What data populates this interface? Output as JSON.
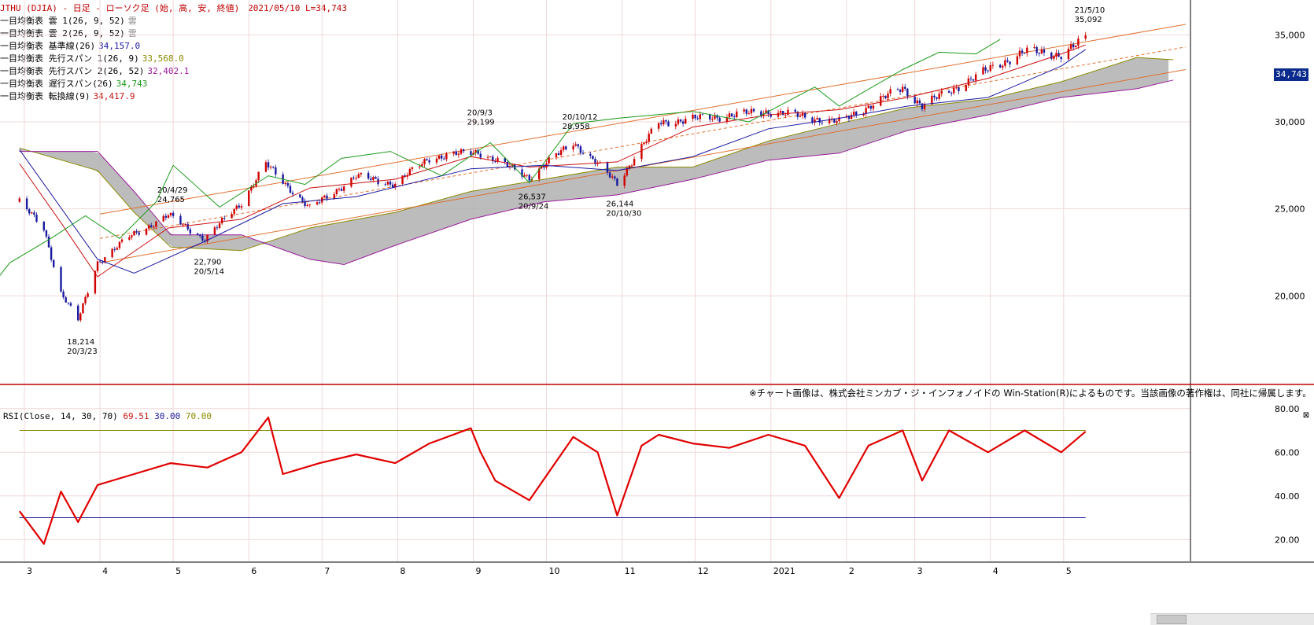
{
  "title": "JTHU (DJIA) - 日足 - ローソク足 (始, 高, 安, 終値)　2021/05/10 L=34,743",
  "legend": [
    {
      "text": "一目均衡表 雲 1(26, 9, 52)",
      "value": "雲",
      "color": "#888888"
    },
    {
      "text": "一目均衡表 雲 2(26, 9, 52)",
      "value": "雲",
      "color": "#888888"
    },
    {
      "text": "一目均衡表 基準線(26)",
      "value": "34,157.0",
      "color": "#1a1aa0"
    },
    {
      "text": "一目均衡表 先行スパン 1(26, 9)",
      "value": "33,568.0",
      "color": "#8a8a00"
    },
    {
      "text": "一目均衡表 先行スパン 2(26, 52)",
      "value": "32,402.1",
      "color": "#9a1a9a"
    },
    {
      "text": "一目均衡表 遅行スパン(26)",
      "value": "34,743",
      "color": "#1a9a1a"
    },
    {
      "text": "一目均衡表 転換線(9)",
      "value": "34,417.9",
      "color": "#cc1111"
    }
  ],
  "current_price_badge": "34,743",
  "rsi_legend": {
    "label": "RSI(Close, 14, 30, 70)",
    "v1": "69.51",
    "v1_color": "#cc1111",
    "v2": "30.00",
    "v2_color": "#1a1aa0",
    "v3": "70.00",
    "v3_color": "#8a8a00"
  },
  "copyright": "※チャート画像は、株式会社ミンカブ・ジ・インフォノイドの Win-Station(R)によるものです。当該画像の著作権は、同社に帰属します。",
  "colors": {
    "up": "#d00000",
    "down": "#1a1aa0",
    "tenkan": "#cc1111",
    "kijun": "#1a1aa0",
    "chikou": "#1a9a1a",
    "spanA": "#8a8a00",
    "spanB": "#9a1a9a",
    "cloud": "#b0b0b0",
    "cloud_dark": "#505050",
    "trend": "#e07030",
    "rsi": "#e00000",
    "grid": "#f0d8d8",
    "frame": "#c00000"
  },
  "chart_data": [
    {
      "type": "line",
      "title": "JTHU (DJIA) - 日足 - ローソク足 (始, 高, 安, 終値)",
      "ylim": [
        15000,
        37000
      ],
      "y_ticks": [
        "35,000",
        "30,000",
        "25,000",
        "20,000"
      ],
      "x_month_labels": [
        "3",
        "4",
        "5",
        "6",
        "7",
        "8",
        "9",
        "10",
        "11",
        "12",
        "2021",
        "2",
        "3",
        "4",
        "5"
      ],
      "annotations": [
        {
          "date": "20/3/23",
          "value": "18,214"
        },
        {
          "date": "20/4/29",
          "value": "24,765"
        },
        {
          "date": "20/5/14",
          "value": "22,790"
        },
        {
          "date": "20/9/3",
          "value": "29,199"
        },
        {
          "date": "20/9/24",
          "value": "26,537"
        },
        {
          "date": "20/10/12",
          "value": "28,958"
        },
        {
          "date": "20/10/30",
          "value": "26,144"
        },
        {
          "date": "21/5/10",
          "value": "35,092"
        }
      ],
      "series": [
        {
          "name": "終値",
          "points": [
            [
              "2020-02-28",
              25400
            ],
            [
              "2020-03-09",
              23850
            ],
            [
              "2020-03-16",
              20190
            ],
            [
              "2020-03-23",
              18590
            ],
            [
              "2020-03-31",
              21920
            ],
            [
              "2020-04-13",
              23390
            ],
            [
              "2020-04-29",
              24630
            ],
            [
              "2020-05-14",
              23250
            ],
            [
              "2020-05-29",
              25380
            ],
            [
              "2020-06-08",
              27570
            ],
            [
              "2020-06-26",
              25020
            ],
            [
              "2020-07-15",
              26870
            ],
            [
              "2020-07-31",
              26430
            ],
            [
              "2020-08-14",
              27930
            ],
            [
              "2020-09-03",
              28290
            ],
            [
              "2020-09-24",
              26820
            ],
            [
              "2020-10-12",
              28840
            ],
            [
              "2020-10-30",
              26500
            ],
            [
              "2020-11-16",
              29950
            ],
            [
              "2020-12-04",
              30220
            ],
            [
              "2020-12-31",
              30600
            ],
            [
              "2021-01-29",
              29980
            ],
            [
              "2021-02-24",
              31960
            ],
            [
              "2021-03-04",
              30920
            ],
            [
              "2021-03-31",
              32980
            ],
            [
              "2021-04-15",
              34040
            ],
            [
              "2021-04-30",
              33870
            ],
            [
              "2021-05-10",
              34743
            ]
          ]
        },
        {
          "name": "転換線",
          "points": [
            [
              "2020-02-28",
              27600
            ],
            [
              "2020-03-16",
              24200
            ],
            [
              "2020-03-31",
              21100
            ],
            [
              "2020-04-29",
              23900
            ],
            [
              "2020-05-29",
              24400
            ],
            [
              "2020-06-26",
              26200
            ],
            [
              "2020-07-31",
              26700
            ],
            [
              "2020-08-31",
              28000
            ],
            [
              "2020-09-24",
              27400
            ],
            [
              "2020-10-30",
              27700
            ],
            [
              "2020-11-30",
              29700
            ],
            [
              "2020-12-31",
              30400
            ],
            [
              "2021-01-29",
              30700
            ],
            [
              "2021-02-26",
              31400
            ],
            [
              "2021-03-31",
              32500
            ],
            [
              "2021-04-30",
              33900
            ],
            [
              "2021-05-10",
              34418
            ]
          ]
        },
        {
          "name": "基準線",
          "points": [
            [
              "2020-02-28",
              28400
            ],
            [
              "2020-03-31",
              22100
            ],
            [
              "2020-04-15",
              21300
            ],
            [
              "2020-05-15",
              23200
            ],
            [
              "2020-06-15",
              25300
            ],
            [
              "2020-07-15",
              25700
            ],
            [
              "2020-08-31",
              27300
            ],
            [
              "2020-09-30",
              27500
            ],
            [
              "2020-10-30",
              27200
            ],
            [
              "2020-11-30",
              28000
            ],
            [
              "2020-12-31",
              29600
            ],
            [
              "2021-01-29",
              30200
            ],
            [
              "2021-02-26",
              30900
            ],
            [
              "2021-03-31",
              31400
            ],
            [
              "2021-04-30",
              33200
            ],
            [
              "2021-05-10",
              34157
            ]
          ]
        },
        {
          "name": "遅行スパン",
          "points": [
            [
              "2020-01-17",
              25400
            ],
            [
              "2020-02-03",
              23900
            ],
            [
              "2020-02-14",
              20100
            ],
            [
              "2020-02-24",
              21900
            ],
            [
              "2020-03-13",
              23400
            ],
            [
              "2020-03-26",
              24600
            ],
            [
              "2020-04-09",
              23300
            ],
            [
              "2020-04-24",
              25400
            ],
            [
              "2020-05-01",
              27500
            ],
            [
              "2020-05-20",
              25100
            ],
            [
              "2020-06-09",
              26900
            ],
            [
              "2020-06-24",
              26400
            ],
            [
              "2020-07-09",
              27900
            ],
            [
              "2020-07-29",
              28300
            ],
            [
              "2020-08-19",
              26900
            ],
            [
              "2020-09-08",
              28800
            ],
            [
              "2020-09-24",
              26500
            ],
            [
              "2020-10-12",
              29900
            ],
            [
              "2020-10-30",
              30200
            ],
            [
              "2020-11-30",
              30600
            ],
            [
              "2020-12-23",
              30000
            ],
            [
              "2021-01-19",
              32000
            ],
            [
              "2021-01-29",
              30900
            ],
            [
              "2021-02-24",
              33000
            ],
            [
              "2021-03-11",
              34000
            ],
            [
              "2021-03-26",
              33900
            ],
            [
              "2021-04-05",
              34743
            ]
          ]
        },
        {
          "name": "先行スパン1",
          "points": [
            [
              "2020-02-28",
              28500
            ],
            [
              "2020-03-31",
              27200
            ],
            [
              "2020-04-15",
              24800
            ],
            [
              "2020-04-30",
              22800
            ],
            [
              "2020-05-29",
              22600
            ],
            [
              "2020-06-26",
              23900
            ],
            [
              "2020-07-31",
              24800
            ],
            [
              "2020-08-31",
              26000
            ],
            [
              "2020-09-30",
              26700
            ],
            [
              "2020-10-30",
              27400
            ],
            [
              "2020-11-30",
              27400
            ],
            [
              "2020-12-31",
              28900
            ],
            [
              "2021-01-29",
              29900
            ],
            [
              "2021-02-26",
              30800
            ],
            [
              "2021-03-31",
              31300
            ],
            [
              "2021-04-30",
              32300
            ],
            [
              "2021-05-31",
              33700
            ],
            [
              "2021-06-15",
              33568
            ]
          ]
        },
        {
          "name": "先行スパン2",
          "points": [
            [
              "2020-02-28",
              28300
            ],
            [
              "2020-03-31",
              28300
            ],
            [
              "2020-04-15",
              26000
            ],
            [
              "2020-04-30",
              23500
            ],
            [
              "2020-05-29",
              23500
            ],
            [
              "2020-06-26",
              22100
            ],
            [
              "2020-07-10",
              21800
            ],
            [
              "2020-07-31",
              22900
            ],
            [
              "2020-08-31",
              24400
            ],
            [
              "2020-09-30",
              25400
            ],
            [
              "2020-10-30",
              25800
            ],
            [
              "2020-11-30",
              26700
            ],
            [
              "2020-12-31",
              27800
            ],
            [
              "2021-01-29",
              28200
            ],
            [
              "2021-02-26",
              29500
            ],
            [
              "2021-03-31",
              30400
            ],
            [
              "2021-04-30",
              31400
            ],
            [
              "2021-05-31",
              31900
            ],
            [
              "2021-06-15",
              32402
            ]
          ]
        }
      ]
    },
    {
      "type": "line",
      "title": "RSI(Close, 14, 30, 70)",
      "ylim": [
        10,
        90
      ],
      "y_ticks": [
        "80.00",
        "60.00",
        "40.00",
        "20.00"
      ],
      "series": [
        {
          "name": "RSI",
          "points": [
            [
              "2020-02-28",
              33
            ],
            [
              "2020-03-09",
              18
            ],
            [
              "2020-03-16",
              42
            ],
            [
              "2020-03-23",
              28
            ],
            [
              "2020-03-31",
              45
            ],
            [
              "2020-04-15",
              50
            ],
            [
              "2020-04-30",
              55
            ],
            [
              "2020-05-15",
              53
            ],
            [
              "2020-05-29",
              60
            ],
            [
              "2020-06-09",
              76
            ],
            [
              "2020-06-15",
              50
            ],
            [
              "2020-06-30",
              55
            ],
            [
              "2020-07-15",
              59
            ],
            [
              "2020-07-31",
              55
            ],
            [
              "2020-08-14",
              64
            ],
            [
              "2020-08-31",
              71
            ],
            [
              "2020-09-04",
              60
            ],
            [
              "2020-09-10",
              47
            ],
            [
              "2020-09-24",
              38
            ],
            [
              "2020-10-12",
              67
            ],
            [
              "2020-10-22",
              60
            ],
            [
              "2020-10-30",
              31
            ],
            [
              "2020-11-09",
              63
            ],
            [
              "2020-11-16",
              68
            ],
            [
              "2020-11-30",
              64
            ],
            [
              "2020-12-15",
              62
            ],
            [
              "2020-12-31",
              68
            ],
            [
              "2021-01-15",
              63
            ],
            [
              "2021-01-29",
              39
            ],
            [
              "2021-02-10",
              63
            ],
            [
              "2021-02-24",
              70
            ],
            [
              "2021-03-04",
              47
            ],
            [
              "2021-03-15",
              70
            ],
            [
              "2021-03-31",
              60
            ],
            [
              "2021-04-15",
              70
            ],
            [
              "2021-04-30",
              60
            ],
            [
              "2021-05-10",
              69.51
            ]
          ]
        },
        {
          "name": "30",
          "points": [
            [
              "2020-02-28",
              30
            ],
            [
              "2021-05-10",
              30
            ]
          ]
        },
        {
          "name": "70",
          "points": [
            [
              "2020-02-28",
              70
            ],
            [
              "2021-05-10",
              70
            ]
          ]
        }
      ]
    }
  ]
}
